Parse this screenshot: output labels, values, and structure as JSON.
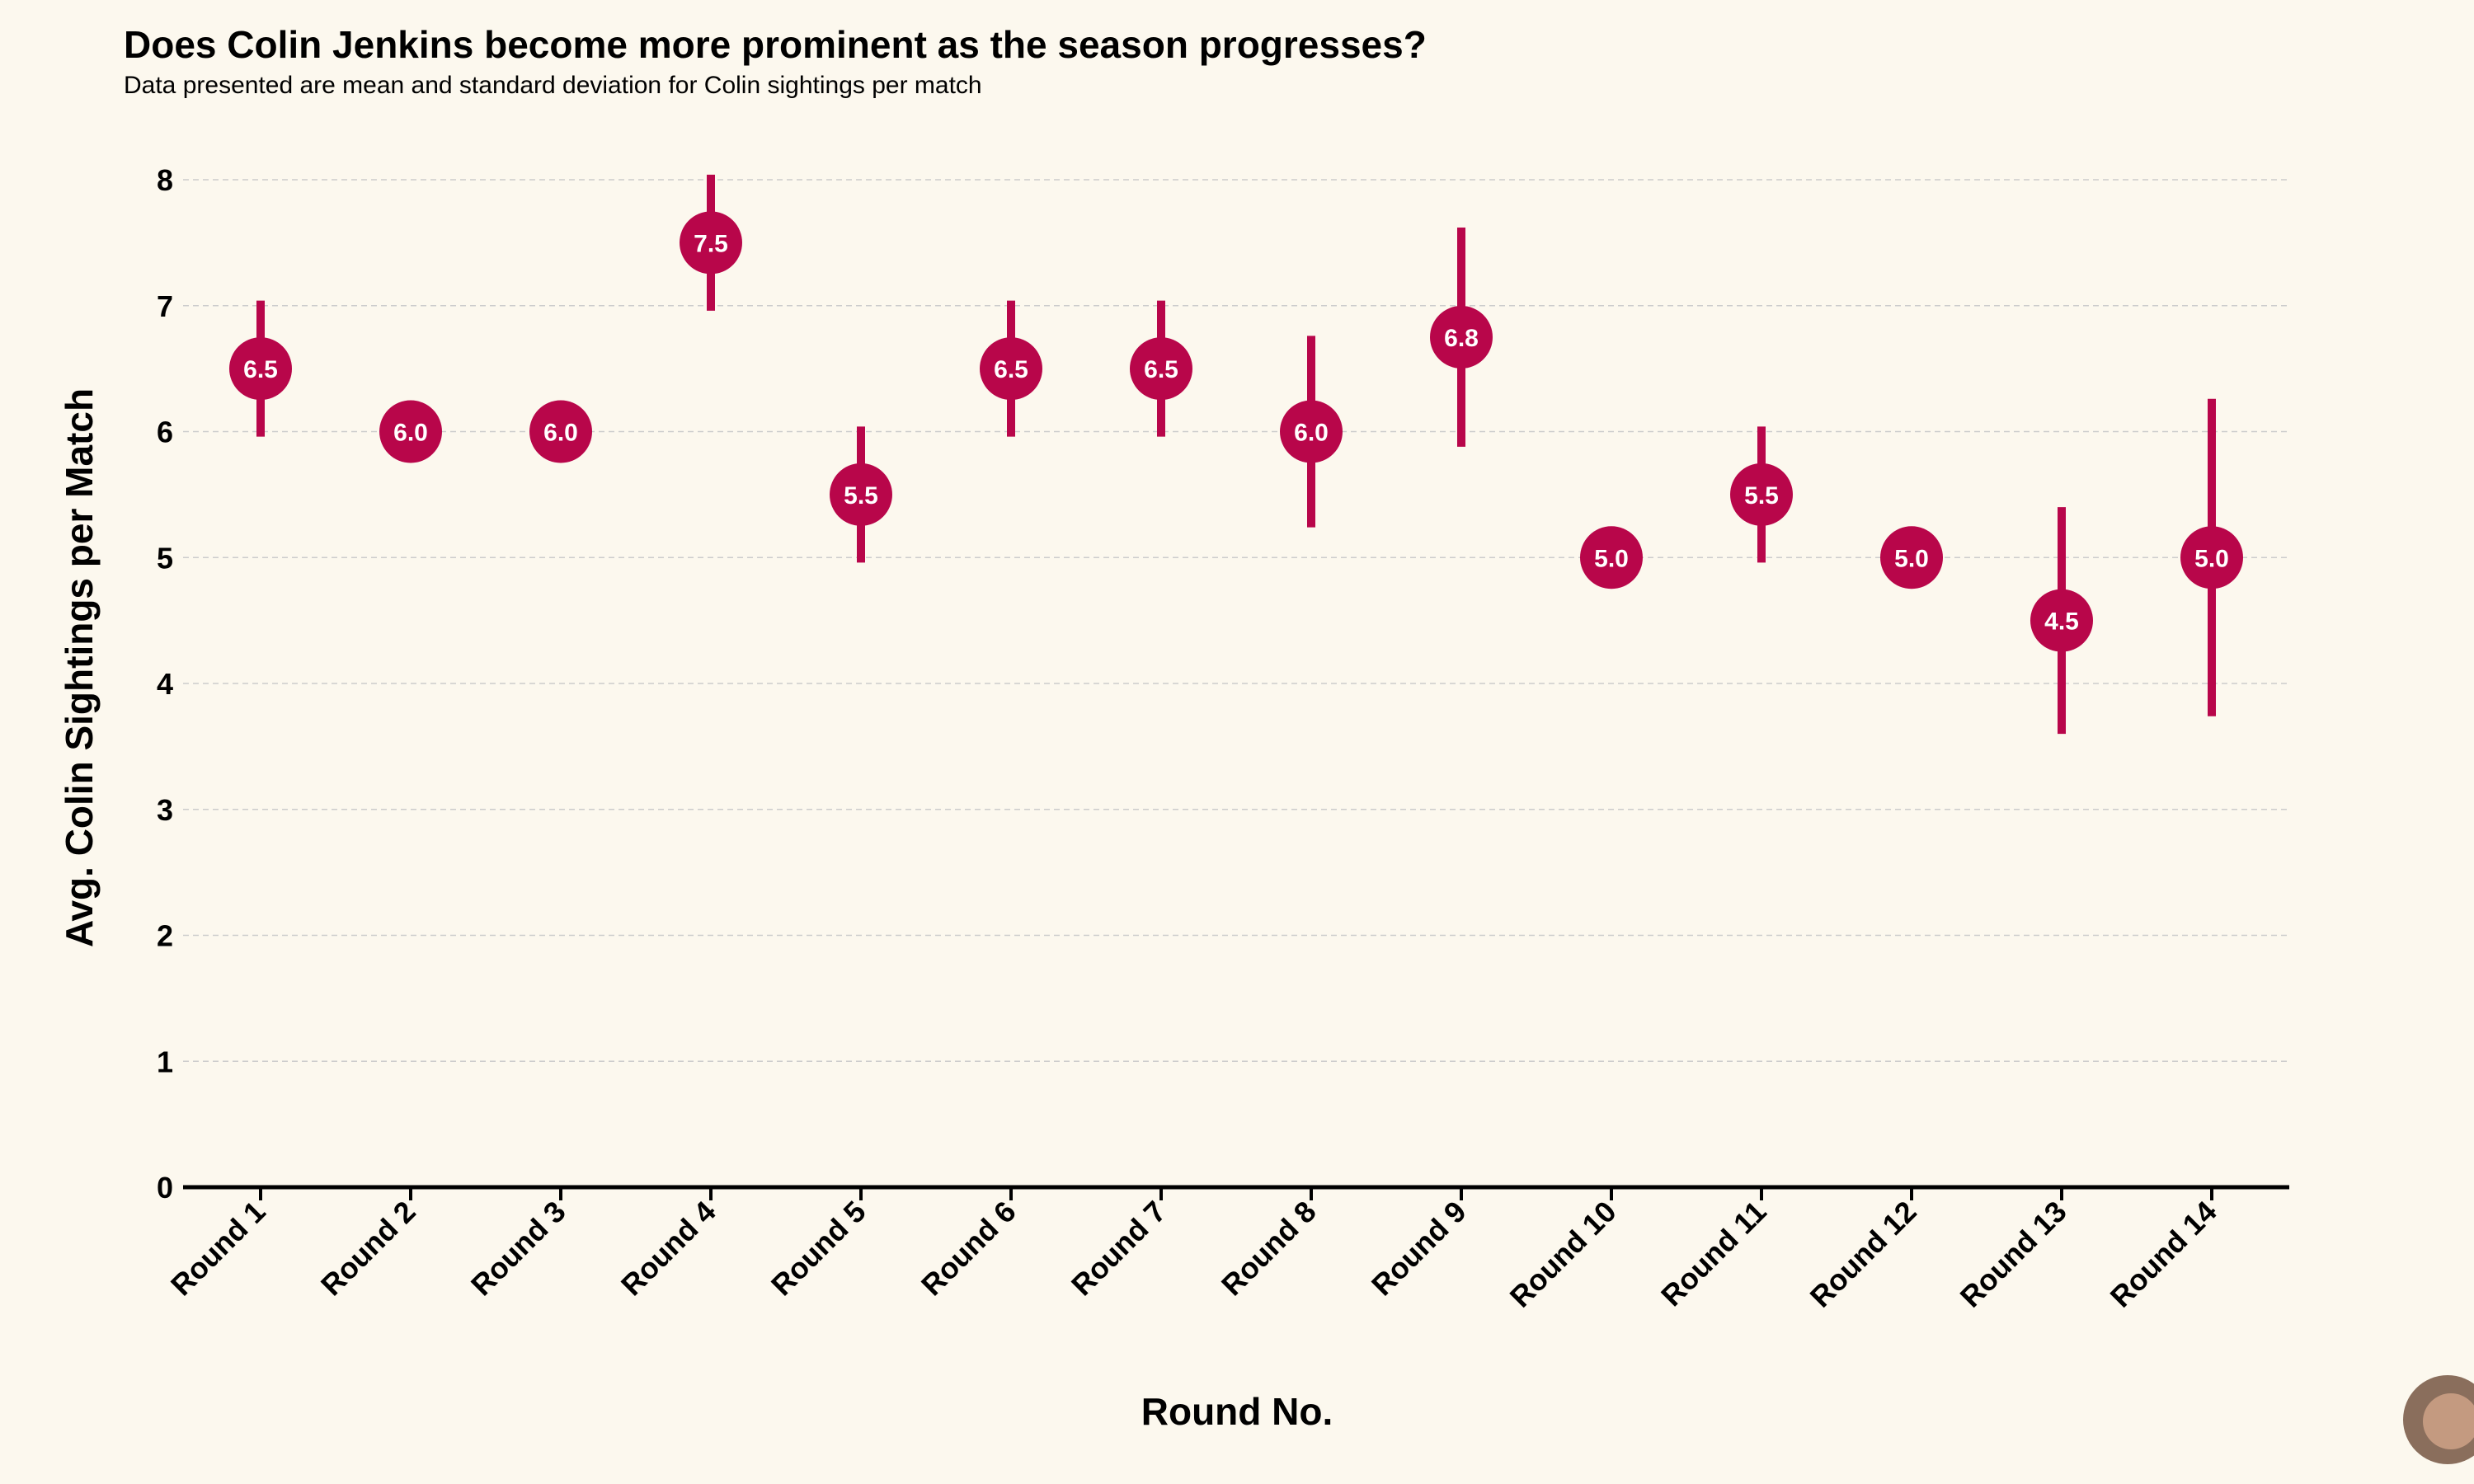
{
  "chart_data": {
    "type": "scatter",
    "title": "Does Colin Jenkins become more prominent as the season progresses?",
    "subtitle": "Data presented are mean and standard deviation for Colin sightings per match",
    "xlabel": "Round No.",
    "ylabel": "Avg. Colin Sightings per Match",
    "ylim": [
      0,
      8
    ],
    "yticks": [
      "0",
      "1",
      "2",
      "3",
      "4",
      "5",
      "6",
      "7",
      "8"
    ],
    "grid": true,
    "categories": [
      "Round 1",
      "Round 2",
      "Round 3",
      "Round 4",
      "Round 5",
      "Round 6",
      "Round 7",
      "Round 8",
      "Round 9",
      "Round 10",
      "Round 11",
      "Round 12",
      "Round 13",
      "Round 14"
    ],
    "series": [
      {
        "name": "Colin sightings per match",
        "means": [
          6.5,
          6.0,
          6.0,
          7.5,
          5.5,
          6.5,
          6.5,
          6.0,
          6.75,
          5.0,
          5.5,
          5.0,
          4.5,
          5.0
        ],
        "std": [
          0.54,
          0.0,
          0.0,
          0.54,
          0.54,
          0.54,
          0.54,
          0.76,
          0.87,
          0.0,
          0.54,
          0.0,
          0.9,
          1.26
        ],
        "labels": [
          "6.5",
          "6.0",
          "6.0",
          "7.5",
          "5.5",
          "6.5",
          "6.5",
          "6.0",
          "6.8",
          "5.0",
          "5.5",
          "5.0",
          "4.5",
          "5.0"
        ]
      }
    ],
    "colors": {
      "marker": "#b8064a",
      "background": "#fcf8ee",
      "grid": "#cccccc",
      "axis": "#000000"
    }
  }
}
